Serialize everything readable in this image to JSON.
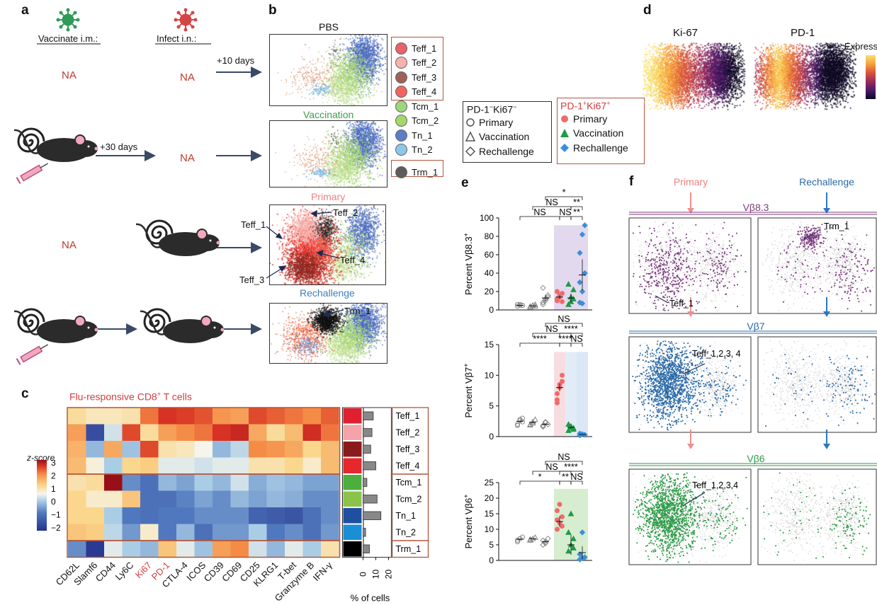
{
  "panel_labels": {
    "a": "a",
    "b": "b",
    "c": "c",
    "d": "d",
    "e": "e",
    "f": "f"
  },
  "panel_a": {
    "vaccinate": "Vaccinate i.m.:",
    "infect": "Infect i.n.:",
    "na": "NA",
    "plus10": "+10 days",
    "plus30": "+30 days",
    "colors": {
      "na": "#c0392b",
      "arrow": "#3a4a66",
      "virus_green": "#2e9b58",
      "virus_red": "#d64545"
    }
  },
  "panel_b": {
    "titles": [
      "PBS",
      "Vaccination",
      "Primary",
      "Rechallenge"
    ],
    "title_colors": [
      "#111111",
      "#3aa14a",
      "#f08080",
      "#3b7fbf"
    ],
    "annotations": [
      "Teff_2",
      "Teff_1",
      "Teff_4",
      "Teff_3",
      "Trm_1"
    ],
    "legend": [
      {
        "label": "Teff_1",
        "color": "#e8636b"
      },
      {
        "label": "Teff_2",
        "color": "#f6b3ae"
      },
      {
        "label": "Teff_3",
        "color": "#a0605a"
      },
      {
        "label": "Teff_4",
        "color": "#f2645f"
      },
      {
        "label": "Tcm_1",
        "color": "#9ed67e"
      },
      {
        "label": "Tcm_2",
        "color": "#a5d86a"
      },
      {
        "label": "Tn_1",
        "color": "#5d7ec6"
      },
      {
        "label": "Tn_2",
        "color": "#8cc7ea"
      },
      {
        "label": "Trm_1",
        "color": "#5c5c5c"
      }
    ]
  },
  "panel_c": {
    "title": "Flu-responsive CD8",
    "title_sup": "+",
    "title_tail": " T cells",
    "zscore_label": "z-score",
    "zscore_ticks": [
      "3",
      "2",
      "1",
      "0",
      "−1",
      "−2"
    ],
    "markers": [
      "CD62L",
      "Slamf6",
      "CD44",
      "Ly6C",
      "Ki67",
      "PD-1",
      "CTLA-4",
      "ICOS",
      "CD39",
      "CD69",
      "CD25",
      "KLRG1",
      "T-bet",
      "Granzyme B",
      "IFN-γ"
    ],
    "marker_colors": [
      "#111111",
      "#111111",
      "#111111",
      "#111111",
      "#d43c3c",
      "#d43c3c",
      "#111111",
      "#111111",
      "#111111",
      "#111111",
      "#111111",
      "#111111",
      "#111111",
      "#111111",
      "#111111"
    ],
    "rows": [
      "Teff_1",
      "Teff_2",
      "Teff_3",
      "Teff_4",
      "Tcm_1",
      "Tcm_2",
      "Tn_1",
      "Tn_2",
      "Trm_1"
    ],
    "row_colors": [
      "#e02030",
      "#f4a3a8",
      "#8b1a1a",
      "#e6272c",
      "#4caf3d",
      "#8bc34a",
      "#1f4fa0",
      "#1b8fd6",
      "#000000"
    ],
    "zscores": [
      [
        0.5,
        0.3,
        0.3,
        0.4,
        1.6,
        2.2,
        2.1,
        1.9,
        1.3,
        1.2,
        2.0,
        1.8,
        1.6,
        1.4,
        1.8
      ],
      [
        1.2,
        -1.8,
        -0.2,
        2.0,
        0.5,
        1.2,
        1.4,
        1.6,
        2.2,
        2.4,
        1.1,
        0.5,
        0.9,
        2.3,
        1.6
      ],
      [
        1.0,
        -0.6,
        1.1,
        -0.5,
        2.0,
        0.4,
        0.3,
        0.0,
        -0.6,
        -0.3,
        1.4,
        1.3,
        1.1,
        0.6,
        0.9
      ],
      [
        0.9,
        0.1,
        -0.4,
        0.6,
        0.7,
        -0.1,
        -0.1,
        -0.2,
        -0.1,
        -0.1,
        0.4,
        0.4,
        0.6,
        0.2,
        0.9
      ],
      [
        0.4,
        0.5,
        3.0,
        -1.0,
        -1.3,
        -0.6,
        -0.8,
        -0.4,
        -0.6,
        -0.2,
        -0.7,
        -0.5,
        -0.6,
        -0.8,
        -0.8
      ],
      [
        0.6,
        0.2,
        0.2,
        0.8,
        -1.3,
        -1.3,
        -1.1,
        -0.8,
        -1.0,
        -0.6,
        -0.8,
        -0.6,
        -0.7,
        -1.0,
        -1.0
      ],
      [
        0.6,
        0.6,
        -0.4,
        -1.2,
        -1.3,
        -1.2,
        -1.2,
        -1.0,
        -1.0,
        -1.0,
        -1.5,
        -1.6,
        -1.7,
        -1.3,
        -1.0
      ],
      [
        0.8,
        0.7,
        -0.3,
        -0.9,
        0.2,
        -1.2,
        -0.6,
        -1.3,
        -0.9,
        -0.9,
        -0.4,
        -1.2,
        -1.0,
        -1.3,
        -0.9
      ],
      [
        -1.0,
        -2.1,
        -0.1,
        -0.4,
        -0.6,
        0.8,
        -0.1,
        -0.5,
        1.2,
        1.4,
        -0.2,
        -0.6,
        -0.1,
        -0.4,
        0.4
      ]
    ],
    "percent_cells": [
      8,
      7,
      6,
      10,
      3,
      11,
      14,
      2,
      5
    ],
    "bar_ticks": [
      "0",
      "10",
      "20"
    ],
    "bar_xlabel": "% of cells"
  },
  "panel_d": {
    "titles": [
      "Ki-67",
      "PD-1"
    ],
    "scale_label": "Express"
  },
  "legend_mid": {
    "neg_title": "PD-1",
    "neg_title_sup1": "−",
    "neg_title_mid": "Ki67",
    "neg_title_sup2": "−",
    "pos_title": "PD-1",
    "pos_title_sup1": "+",
    "pos_title_mid": "Ki67",
    "pos_title_sup2": "+",
    "groups": [
      "Primary",
      "Vaccination",
      "Rechallenge"
    ],
    "pos_colors": [
      "#ef6b6b",
      "#1f9a45",
      "#3b8fd8"
    ]
  },
  "panel_e": {
    "plots": [
      {
        "ylabel": "Percent Vβ8.3",
        "sup": "+",
        "ymax": 100,
        "ticks": [
          "0",
          "20",
          "40",
          "60",
          "80",
          "100"
        ],
        "tick_values": [
          0,
          20,
          40,
          60,
          80,
          100
        ],
        "groups": [
          {
            "vals": [
              4,
              5,
              5,
              6,
              6,
              5
            ],
            "shape": "circle",
            "filled": false
          },
          {
            "vals": [
              3,
              5,
              6,
              4,
              5,
              4
            ],
            "shape": "triangle",
            "filled": false
          },
          {
            "vals": [
              8,
              12,
              16,
              24,
              10,
              14,
              6
            ],
            "shape": "diamond",
            "filled": false
          },
          {
            "vals": [
              10,
              14,
              18,
              12,
              16,
              9,
              20
            ],
            "shape": "circle",
            "filled": true
          },
          {
            "vals": [
              6,
              14,
              22,
              28,
              9,
              12
            ],
            "shape": "triangle",
            "filled": true
          },
          {
            "vals": [
              8,
              20,
              40,
              62,
              82,
              92,
              30,
              7
            ],
            "shape": "diamond",
            "filled": true
          }
        ],
        "means": [
          5,
          4.5,
          13,
          14,
          13,
          38
        ],
        "brackets": [
          {
            "a": 0,
            "b": 3,
            "label": "NS",
            "level": 0
          },
          {
            "a": 3,
            "b": 4,
            "label": "NS",
            "level": 0
          },
          {
            "a": 4,
            "b": 5,
            "label": "**",
            "level": 0
          },
          {
            "a": 1,
            "b": 4,
            "label": "NS",
            "level": 1
          },
          {
            "a": 4,
            "b": 5,
            "label": "**",
            "level": 1
          },
          {
            "a": 2,
            "b": 5,
            "label": "*",
            "level": 2
          }
        ]
      },
      {
        "ylabel": "Percent Vβ7",
        "sup": "+",
        "ymax": 15,
        "ticks": [
          "0",
          "5",
          "10",
          "15"
        ],
        "tick_values": [
          0,
          5,
          10,
          15
        ],
        "groups": [
          {
            "vals": [
              2,
              2.6,
              3,
              1.8,
              2.8,
              2.4
            ],
            "shape": "circle",
            "filled": false
          },
          {
            "vals": [
              2,
              2.4,
              2.8,
              1.9,
              2.2
            ],
            "shape": "triangle",
            "filled": false
          },
          {
            "vals": [
              1.6,
              2.3,
              2.0,
              1.8,
              2.4
            ],
            "shape": "diamond",
            "filled": false
          },
          {
            "vals": [
              6,
              8,
              9,
              7,
              8.5,
              10,
              5.5
            ],
            "shape": "circle",
            "filled": true
          },
          {
            "vals": [
              1,
              1.5,
              1.2,
              2,
              1.7,
              1.4
            ],
            "shape": "triangle",
            "filled": true
          },
          {
            "vals": [
              0.2,
              0.4,
              0.3,
              0.5
            ],
            "shape": "diamond",
            "filled": true
          }
        ],
        "means": [
          2.5,
          2.3,
          2.0,
          8,
          1.5,
          0.35
        ],
        "brackets": [
          {
            "a": 0,
            "b": 3,
            "label": "****",
            "level": 0
          },
          {
            "a": 3,
            "b": 4,
            "label": "****",
            "level": 0
          },
          {
            "a": 4,
            "b": 5,
            "label": "NS",
            "level": 0
          },
          {
            "a": 1,
            "b": 4,
            "label": "NS",
            "level": 1
          },
          {
            "a": 3,
            "b": 5,
            "label": "****",
            "level": 1
          },
          {
            "a": 2,
            "b": 5,
            "label": "NS",
            "level": 2
          }
        ]
      },
      {
        "ylabel": "Percent Vβ6",
        "sup": "+",
        "ymax": 25,
        "ticks": [
          "0",
          "5",
          "10",
          "15",
          "20",
          "25"
        ],
        "tick_values": [
          0,
          5,
          10,
          15,
          20,
          25
        ],
        "groups": [
          {
            "vals": [
              6,
              7,
              7.5,
              6.5,
              7
            ],
            "shape": "circle",
            "filled": false
          },
          {
            "vals": [
              6.5,
              7,
              7.4,
              6.8
            ],
            "shape": "triangle",
            "filled": false
          },
          {
            "vals": [
              5,
              6,
              7,
              6.4,
              5.5
            ],
            "shape": "diamond",
            "filled": false
          },
          {
            "vals": [
              10,
              12,
              14,
              16,
              18,
              11,
              13
            ],
            "shape": "circle",
            "filled": true
          },
          {
            "vals": [
              3,
              5,
              7,
              9,
              15,
              4
            ],
            "shape": "triangle",
            "filled": true
          },
          {
            "vals": [
              0.3,
              0.8,
              1,
              2,
              9
            ],
            "shape": "diamond",
            "filled": true
          }
        ],
        "means": [
          6.8,
          7,
          6,
          12.5,
          5,
          2.5
        ],
        "brackets": [
          {
            "a": 0,
            "b": 3,
            "label": "*",
            "level": 0
          },
          {
            "a": 3,
            "b": 4,
            "label": "**",
            "level": 0
          },
          {
            "a": 4,
            "b": 5,
            "label": "NS",
            "level": 0
          },
          {
            "a": 1,
            "b": 4,
            "label": "NS",
            "level": 1
          },
          {
            "a": 3,
            "b": 5,
            "label": "****",
            "level": 1
          },
          {
            "a": 2,
            "b": 5,
            "label": "NS",
            "level": 2
          }
        ]
      }
    ]
  },
  "panel_f": {
    "primary": "Primary",
    "rechallenge": "Rechallenge",
    "sections": [
      "Vβ8.3",
      "Vβ7",
      "Vβ6"
    ],
    "section_colors": [
      "#7b3a7e",
      "#2a6aa8",
      "#2e9b48"
    ],
    "annotations": [
      "Trm_1",
      "Teff_1",
      "Teff_1,2,3, 4",
      "Teff_1,2,3,4"
    ]
  }
}
